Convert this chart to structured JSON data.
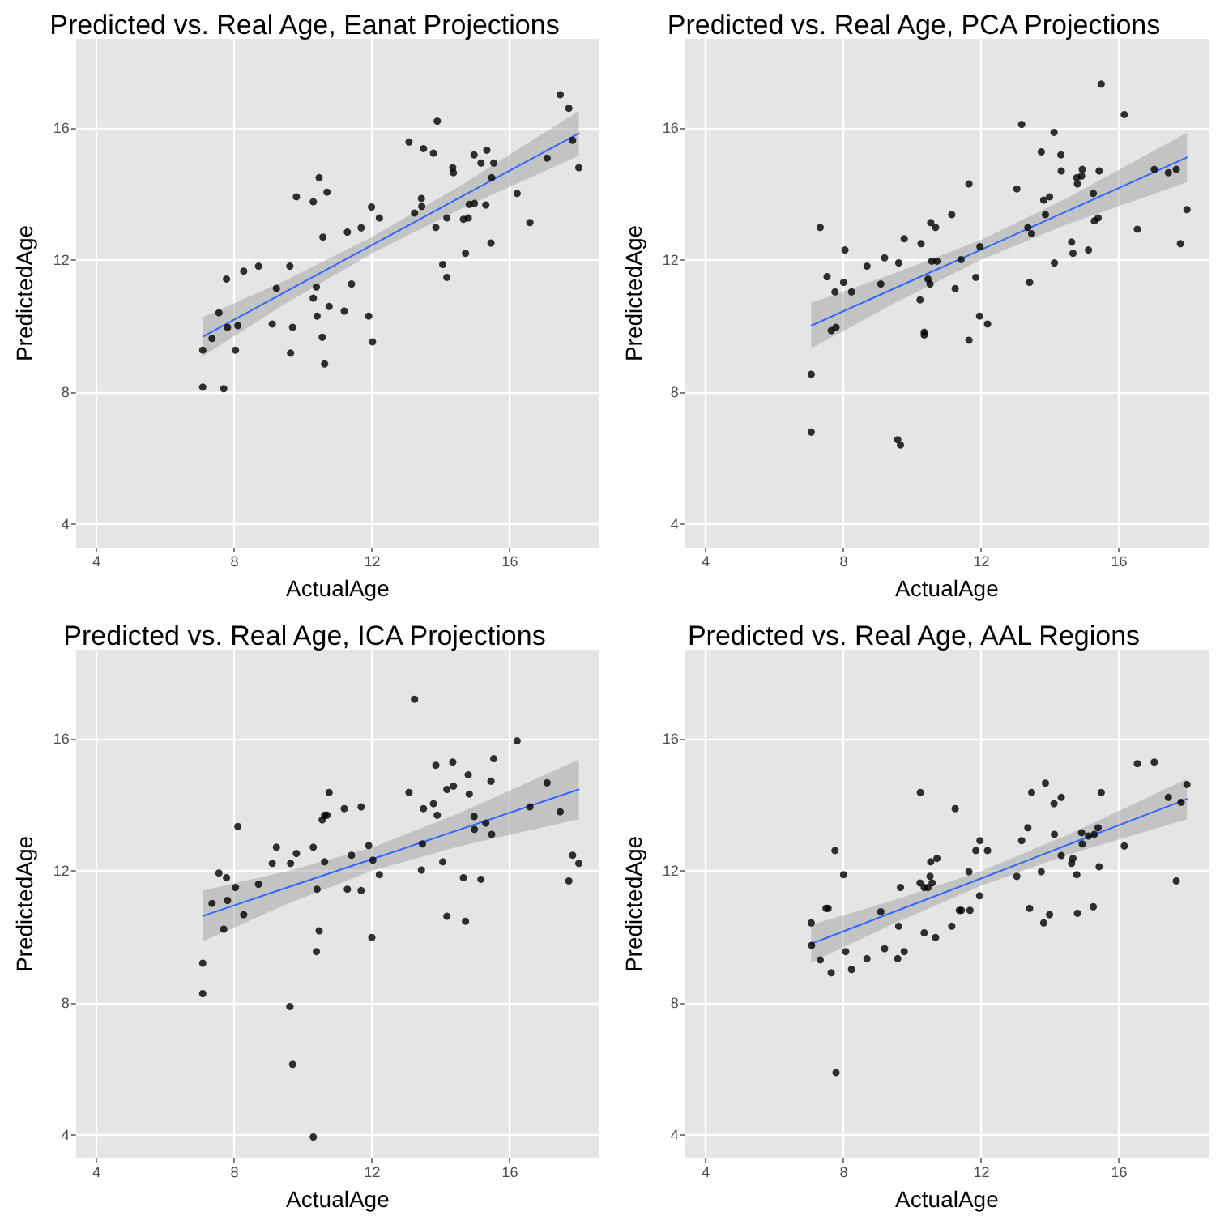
{
  "chart_data": [
    {
      "type": "scatter",
      "title": "Predicted vs. Real Age, Eanat Projections",
      "xlabel": "ActualAge",
      "ylabel": "PredictedAge",
      "xlim": [
        3.4,
        18.6
      ],
      "ylim": [
        3.3,
        18.7
      ],
      "xticks": [
        4,
        8,
        12,
        16
      ],
      "yticks": [
        4,
        8,
        12,
        16
      ],
      "grid": true,
      "series": [
        {
          "color": "#000000",
          "marker": "circle",
          "x": [
            7.08,
            7.08,
            7.35,
            7.55,
            7.69,
            7.77,
            7.8,
            8.03,
            8.1,
            8.27,
            8.7,
            9.1,
            9.22,
            9.61,
            9.63,
            9.69,
            9.8,
            10.29,
            10.29,
            10.38,
            10.4,
            10.46,
            10.55,
            10.57,
            10.62,
            10.69,
            10.75,
            11.19,
            11.28,
            11.4,
            11.68,
            11.9,
            11.98,
            12.01,
            12.21,
            13.07,
            13.23,
            13.43,
            13.44,
            13.49,
            13.78,
            13.85,
            13.89,
            14.05,
            14.17,
            14.17,
            14.34,
            14.36,
            14.65,
            14.71,
            14.79,
            14.82,
            14.96,
            14.97,
            15.16,
            15.3,
            15.33,
            15.45,
            15.47,
            15.53,
            16.21,
            16.58,
            17.08,
            17.46,
            17.71,
            17.82,
            18.0
          ],
          "values": [
            9.28,
            8.16,
            9.63,
            10.41,
            8.11,
            11.43,
            9.97,
            9.28,
            10.02,
            11.67,
            11.82,
            10.07,
            11.15,
            11.82,
            9.19,
            9.97,
            13.92,
            13.77,
            10.85,
            11.19,
            10.31,
            14.5,
            9.67,
            12.7,
            8.86,
            14.06,
            10.6,
            10.46,
            12.85,
            11.28,
            12.98,
            10.31,
            13.61,
            9.53,
            13.28,
            15.58,
            13.43,
            13.87,
            13.63,
            15.38,
            15.24,
            12.99,
            16.21,
            11.87,
            13.28,
            11.48,
            14.8,
            14.65,
            13.24,
            12.21,
            13.28,
            13.69,
            15.19,
            13.72,
            14.94,
            13.67,
            15.33,
            12.52,
            14.5,
            14.94,
            14.02,
            13.14,
            15.09,
            17.01,
            16.6,
            15.63,
            14.8
          ]
        },
        {
          "type": "line",
          "color": "#3366ff",
          "marker": "none",
          "x": [
            7.09,
            9.5,
            12,
            14.5,
            18.0
          ],
          "values": [
            9.69,
            11.05,
            12.46,
            13.87,
            15.84
          ],
          "lower": [
            9.1,
            10.7,
            12.21,
            13.52,
            15.16
          ],
          "upper": [
            10.28,
            11.4,
            12.71,
            14.22,
            16.52
          ]
        }
      ]
    },
    {
      "type": "scatter",
      "title": "Predicted vs. Real Age, PCA Projections",
      "xlabel": "ActualAge",
      "ylabel": "PredictedAge",
      "xlim": [
        3.4,
        18.6
      ],
      "ylim": [
        3.3,
        18.7
      ],
      "xticks": [
        4,
        8,
        12,
        16
      ],
      "yticks": [
        4,
        8,
        12,
        16
      ],
      "grid": true,
      "series": [
        {
          "color": "#000000",
          "marker": "circle",
          "x": [
            7.06,
            7.06,
            7.32,
            7.52,
            7.64,
            7.75,
            7.78,
            8.0,
            8.04,
            8.23,
            8.68,
            9.08,
            9.19,
            9.57,
            9.6,
            9.65,
            9.76,
            10.22,
            10.25,
            10.34,
            10.34,
            10.45,
            10.51,
            10.53,
            10.56,
            10.67,
            10.71,
            11.14,
            11.24,
            11.41,
            11.64,
            11.64,
            11.84,
            11.95,
            11.96,
            12.18,
            13.03,
            13.17,
            13.35,
            13.4,
            13.46,
            13.74,
            13.81,
            13.86,
            13.98,
            14.11,
            14.12,
            14.31,
            14.32,
            14.62,
            14.66,
            14.77,
            14.79,
            14.91,
            14.93,
            15.11,
            15.25,
            15.28,
            15.39,
            15.42,
            15.48,
            16.15,
            16.53,
            17.02,
            17.43,
            17.66,
            17.78,
            17.97
          ],
          "values": [
            8.55,
            6.8,
            12.99,
            11.5,
            9.87,
            11.04,
            9.97,
            11.33,
            12.31,
            11.04,
            11.82,
            11.28,
            12.07,
            6.57,
            11.92,
            6.41,
            12.65,
            10.8,
            12.5,
            9.82,
            9.74,
            11.43,
            11.28,
            13.14,
            11.97,
            12.99,
            11.97,
            13.38,
            11.14,
            12.02,
            14.31,
            9.58,
            11.48,
            10.31,
            12.41,
            10.07,
            14.16,
            16.11,
            12.99,
            11.33,
            12.8,
            15.28,
            13.82,
            13.38,
            13.92,
            15.87,
            11.92,
            15.19,
            14.7,
            12.55,
            12.21,
            14.5,
            14.31,
            14.55,
            14.75,
            12.31,
            14.02,
            13.19,
            13.28,
            14.7,
            17.33,
            16.41,
            12.94,
            14.75,
            14.65,
            14.75,
            12.5,
            13.53
          ]
        },
        {
          "type": "line",
          "color": "#3366ff",
          "marker": "none",
          "x": [
            7.06,
            9.5,
            12,
            14.5,
            17.97
          ],
          "values": [
            10.02,
            11.16,
            12.32,
            13.49,
            15.11
          ],
          "lower": [
            9.33,
            10.71,
            12.02,
            13.09,
            14.36
          ],
          "upper": [
            10.71,
            11.61,
            12.62,
            13.89,
            15.86
          ]
        }
      ]
    },
    {
      "type": "scatter",
      "title": "Predicted vs. Real Age, ICA Projections",
      "xlabel": "ActualAge",
      "ylabel": "PredictedAge",
      "xlim": [
        3.4,
        18.6
      ],
      "ylim": [
        3.3,
        18.7
      ],
      "xticks": [
        4,
        8,
        12,
        16
      ],
      "yticks": [
        4,
        8,
        12,
        16
      ],
      "grid": true,
      "series": [
        {
          "color": "#000000",
          "marker": "circle",
          "x": [
            7.08,
            7.08,
            7.35,
            7.55,
            7.69,
            7.77,
            7.8,
            8.03,
            8.1,
            8.27,
            8.7,
            9.1,
            9.22,
            9.61,
            9.63,
            9.69,
            9.8,
            10.29,
            10.29,
            10.38,
            10.4,
            10.46,
            10.55,
            10.62,
            10.62,
            10.69,
            10.75,
            11.19,
            11.28,
            11.4,
            11.68,
            11.68,
            11.9,
            11.99,
            12.02,
            12.21,
            13.07,
            13.23,
            13.43,
            13.46,
            13.49,
            13.78,
            13.85,
            13.89,
            14.05,
            14.17,
            14.17,
            14.34,
            14.36,
            14.65,
            14.71,
            14.79,
            14.82,
            14.96,
            14.97,
            15.16,
            15.3,
            15.45,
            15.47,
            15.53,
            16.21,
            16.58,
            17.08,
            17.46,
            17.71,
            17.82,
            18.0
          ],
          "values": [
            9.21,
            8.29,
            11.02,
            11.94,
            10.24,
            11.8,
            11.11,
            11.5,
            13.35,
            10.68,
            11.6,
            12.23,
            12.72,
            7.9,
            12.23,
            6.15,
            12.53,
            12.72,
            3.95,
            9.56,
            11.45,
            10.19,
            13.55,
            13.69,
            12.28,
            13.69,
            14.38,
            13.89,
            11.45,
            12.48,
            13.94,
            11.41,
            12.77,
            9.99,
            12.33,
            11.89,
            14.38,
            17.2,
            12.03,
            12.82,
            13.89,
            14.04,
            15.2,
            13.69,
            12.28,
            10.63,
            14.47,
            15.3,
            14.57,
            11.8,
            10.48,
            14.91,
            14.33,
            13.65,
            13.26,
            11.75,
            13.45,
            14.72,
            13.11,
            15.4,
            15.94,
            13.94,
            14.67,
            13.79,
            11.7,
            12.48,
            12.23
          ]
        },
        {
          "type": "line",
          "color": "#3366ff",
          "marker": "none",
          "x": [
            7.09,
            9.5,
            12,
            14.5,
            18.0
          ],
          "values": [
            10.64,
            11.49,
            12.36,
            13.24,
            14.47
          ],
          "lower": [
            9.87,
            10.99,
            12.01,
            12.74,
            13.57
          ],
          "upper": [
            11.41,
            11.99,
            12.71,
            13.74,
            15.37
          ]
        }
      ]
    },
    {
      "type": "scatter",
      "title": "Predicted vs. Real Age, AAL Regions",
      "xlabel": "ActualAge",
      "ylabel": "PredictedAge",
      "xlim": [
        3.4,
        18.6
      ],
      "ylim": [
        3.3,
        18.7
      ],
      "xticks": [
        4,
        8,
        12,
        16
      ],
      "yticks": [
        4,
        8,
        12,
        16
      ],
      "grid": true,
      "series": [
        {
          "color": "#000000",
          "marker": "circle",
          "x": [
            7.06,
            7.07,
            7.32,
            7.49,
            7.55,
            7.64,
            7.75,
            7.78,
            8.0,
            8.06,
            8.23,
            8.68,
            9.08,
            9.19,
            9.57,
            9.6,
            9.65,
            9.76,
            10.22,
            10.23,
            10.34,
            10.34,
            10.45,
            10.51,
            10.53,
            10.57,
            10.67,
            10.71,
            11.14,
            11.24,
            11.36,
            11.42,
            11.64,
            11.67,
            11.84,
            11.95,
            11.96,
            12.18,
            13.03,
            13.17,
            13.35,
            13.4,
            13.46,
            13.74,
            13.81,
            13.86,
            13.98,
            14.11,
            14.12,
            14.32,
            14.32,
            14.62,
            14.66,
            14.77,
            14.79,
            14.91,
            14.93,
            15.11,
            15.25,
            15.28,
            15.39,
            15.42,
            15.48,
            16.15,
            16.53,
            17.02,
            17.43,
            17.66,
            17.8,
            17.97
          ],
          "values": [
            10.43,
            9.75,
            9.31,
            10.87,
            10.87,
            8.92,
            12.62,
            5.9,
            11.89,
            9.56,
            9.02,
            9.35,
            10.77,
            9.65,
            9.35,
            10.33,
            11.5,
            9.56,
            11.64,
            14.38,
            10.13,
            11.5,
            11.5,
            11.84,
            12.28,
            11.64,
            9.99,
            12.38,
            10.33,
            13.89,
            10.81,
            10.81,
            11.98,
            10.81,
            12.62,
            11.25,
            12.92,
            12.62,
            11.84,
            12.92,
            13.31,
            10.87,
            14.38,
            11.98,
            10.43,
            14.66,
            10.68,
            14.04,
            13.11,
            12.47,
            14.23,
            12.23,
            12.38,
            11.89,
            10.72,
            13.16,
            12.82,
            13.06,
            10.92,
            13.11,
            13.31,
            12.13,
            14.38,
            12.76,
            15.25,
            15.3,
            14.23,
            11.7,
            14.08,
            14.62
          ]
        },
        {
          "type": "line",
          "color": "#3366ff",
          "marker": "none",
          "x": [
            7.06,
            9.5,
            12,
            14.5,
            17.97
          ],
          "values": [
            9.8,
            10.78,
            11.78,
            12.79,
            14.18
          ],
          "lower": [
            9.23,
            10.43,
            11.56,
            12.49,
            13.57
          ],
          "upper": [
            10.37,
            11.13,
            12.0,
            13.09,
            14.79
          ]
        }
      ]
    }
  ]
}
